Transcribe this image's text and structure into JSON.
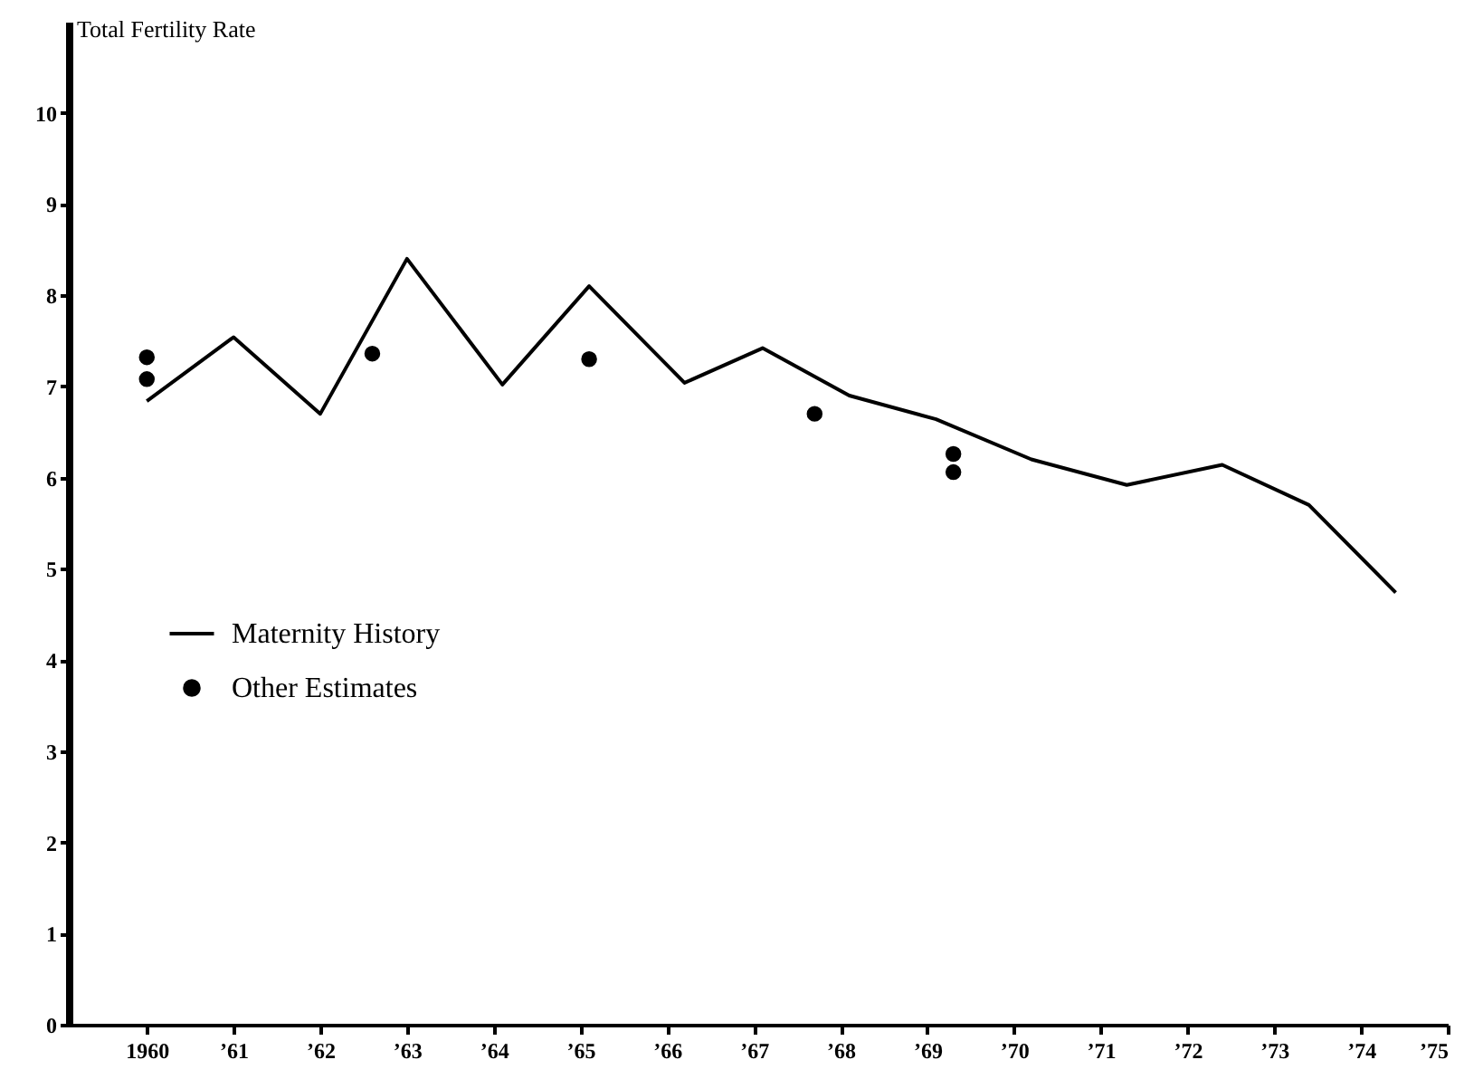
{
  "chart_data": {
    "type": "line",
    "ylabel": "Total Fertility Rate",
    "xlim": [
      1959.1,
      1975
    ],
    "ylim": [
      0,
      11
    ],
    "xticks": [
      {
        "value": 1960,
        "label": "1960"
      },
      {
        "value": 1961,
        "label": "’61"
      },
      {
        "value": 1962,
        "label": "’62"
      },
      {
        "value": 1963,
        "label": "’63"
      },
      {
        "value": 1964,
        "label": "’64"
      },
      {
        "value": 1965,
        "label": "’65"
      },
      {
        "value": 1966,
        "label": "’66"
      },
      {
        "value": 1967,
        "label": "’67"
      },
      {
        "value": 1968,
        "label": "’68"
      },
      {
        "value": 1969,
        "label": "’69"
      },
      {
        "value": 1970,
        "label": "’70"
      },
      {
        "value": 1971,
        "label": "’71"
      },
      {
        "value": 1972,
        "label": "’72"
      },
      {
        "value": 1973,
        "label": "’73"
      },
      {
        "value": 1974,
        "label": "’74"
      },
      {
        "value": 1975,
        "label": "’75"
      }
    ],
    "yticks": [
      0,
      1,
      2,
      3,
      4,
      5,
      6,
      7,
      8,
      9,
      10
    ],
    "grid": false,
    "legend": "left",
    "line_style": "solid",
    "series": [
      {
        "name": "Maternity History",
        "color": "#000000",
        "marker": "none",
        "x": [
          1960.0,
          1961.0,
          1962.0,
          1963.0,
          1964.1,
          1965.1,
          1966.2,
          1967.1,
          1968.1,
          1969.1,
          1970.2,
          1971.3,
          1972.4,
          1973.4,
          1974.4
        ],
        "values": [
          6.84,
          7.54,
          6.7,
          8.4,
          7.02,
          8.1,
          7.04,
          7.42,
          6.9,
          6.64,
          6.2,
          5.92,
          6.14,
          5.7,
          4.74
        ]
      },
      {
        "name": "Other Estimates",
        "type": "scatter",
        "color": "#000000",
        "marker": "circle",
        "x": [
          1960.0,
          1960.0,
          1962.6,
          1965.1,
          1967.7,
          1969.3,
          1969.3
        ],
        "values": [
          7.32,
          7.08,
          7.36,
          7.3,
          6.7,
          6.26,
          6.06
        ]
      }
    ]
  }
}
